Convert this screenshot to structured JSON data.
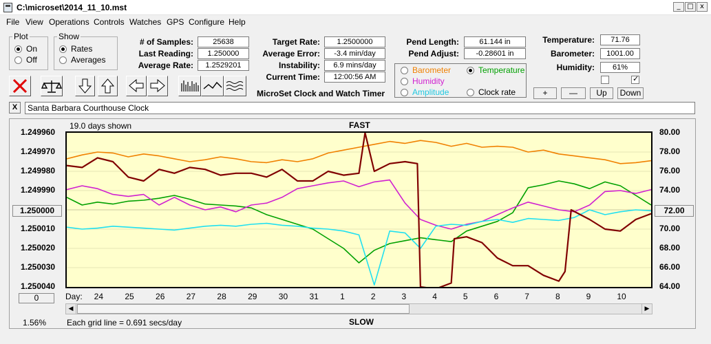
{
  "window": {
    "title": "C:\\microset\\2014_11_10.mst"
  },
  "menu": [
    "File",
    "View",
    "Operations",
    "Controls",
    "Watches",
    "GPS",
    "Configure",
    "Help"
  ],
  "plot_group": {
    "legend": "Plot",
    "on": "On",
    "off": "Off",
    "selected": "On"
  },
  "show_group": {
    "legend": "Show",
    "rates": "Rates",
    "averages": "Averages",
    "selected": "Rates"
  },
  "stats": {
    "num_samples_label": "# of Samples:",
    "num_samples": "25638",
    "last_reading_label": "Last Reading:",
    "last_reading": "1.250000",
    "average_rate_label": "Average Rate:",
    "average_rate": "1.2529201"
  },
  "rates": {
    "target_rate_label": "Target Rate:",
    "target_rate": "1.2500000",
    "average_error_label": "Average Error:",
    "average_error": "-3.4 min/day",
    "instability_label": "Instability:",
    "instability": "6.9 mins/day",
    "current_time_label": "Current Time:",
    "current_time": "12:00:56 AM"
  },
  "app_name": "MicroSet Clock and Watch Timer",
  "pend": {
    "length_label": "Pend Length:",
    "length": "61.144 in",
    "adjust_label": "Pend Adjust:",
    "adjust": "-0.28601 in"
  },
  "series_select": {
    "barometer": "Barometer",
    "temperature": "Temperature",
    "humidity": "Humidity",
    "amplitude": "Amplitude",
    "clock_rate": "Clock rate",
    "selected": "Temperature"
  },
  "environment": {
    "temperature_label": "Temperature:",
    "temperature": "71.76",
    "barometer_label": "Barometer:",
    "barometer": "1001.00",
    "humidity_label": "Humidity:",
    "humidity": "61%"
  },
  "scale_buttons": {
    "plus": "+",
    "minus": "—",
    "up": "Up",
    "down": "Down"
  },
  "watch_name": "Santa Barbara Courthouse Clock",
  "clear_label": "X",
  "colors": {
    "barometer": "#f08000",
    "temperature": "#00a000",
    "humidity": "#d020d0",
    "amplitude": "#20e0f0",
    "clock_rate": "#800000",
    "plot_bg": "#ffffcc"
  },
  "chart": {
    "days_shown": "19.0 days shown",
    "fast_label": "FAST",
    "slow_label": "SLOW",
    "grid_note": "Each grid line = 0.691 secs/day",
    "zoom": "1.56%",
    "center_value": "1.250000",
    "center_right": "72.00",
    "offset_value": "0",
    "day_label": "Day:"
  },
  "chart_data": {
    "type": "line",
    "title": "",
    "left_axis_ticks": [
      "1.249960",
      "1.249970",
      "1.249980",
      "1.249990",
      "1.250000",
      "1.250010",
      "1.250020",
      "1.250030",
      "1.250040"
    ],
    "right_axis_ticks": [
      "80.00",
      "78.00",
      "76.00",
      "74.00",
      "72.00",
      "70.00",
      "68.00",
      "66.00",
      "64.00"
    ],
    "ylim_left": [
      1.24996,
      1.25004
    ],
    "ylim_right": [
      64,
      80
    ],
    "x_ticks": [
      "24",
      "25",
      "26",
      "27",
      "28",
      "29",
      "30",
      "31",
      "1",
      "2",
      "3",
      "4",
      "5",
      "6",
      "7",
      "8",
      "9",
      "10"
    ],
    "grid": true,
    "series": [
      {
        "name": "Barometer",
        "x": [
          0,
          0.5,
          1,
          1.5,
          2,
          2.5,
          3,
          3.5,
          4,
          4.5,
          5,
          5.5,
          6,
          6.5,
          7,
          7.5,
          8,
          8.5,
          9,
          9.5,
          10,
          10.5,
          11,
          11.5,
          12,
          12.5,
          13,
          13.5,
          14,
          14.5,
          15,
          15.5,
          16,
          16.5,
          17,
          17.5,
          18,
          18.5,
          19
        ],
        "y": [
          77.3,
          77.7,
          78.0,
          77.9,
          77.5,
          77.8,
          77.6,
          77.3,
          77.0,
          77.2,
          77.5,
          77.3,
          77.0,
          76.9,
          77.2,
          77.0,
          77.3,
          77.9,
          78.2,
          78.5,
          78.8,
          79.1,
          78.9,
          79.2,
          79.0,
          78.6,
          78.9,
          78.5,
          78.6,
          78.5,
          78.0,
          78.2,
          77.8,
          77.6,
          77.4,
          77.2,
          76.8,
          76.9,
          77.1
        ]
      },
      {
        "name": "Temperature",
        "x": [
          0,
          0.5,
          1,
          1.5,
          2,
          2.5,
          3,
          3.5,
          4,
          4.5,
          5,
          5.5,
          6,
          6.5,
          7,
          7.5,
          8,
          8.5,
          9,
          9.5,
          10,
          10.5,
          11,
          11.5,
          12,
          12.5,
          13,
          13.5,
          14,
          14.5,
          15,
          15.5,
          16,
          16.5,
          17,
          17.5,
          18,
          18.5,
          19
        ],
        "y": [
          73.3,
          72.5,
          72.8,
          72.6,
          72.9,
          73.0,
          73.2,
          73.5,
          73.1,
          72.6,
          72.5,
          72.4,
          72.2,
          71.5,
          71.0,
          70.5,
          70.0,
          69.0,
          68.0,
          66.5,
          67.8,
          68.5,
          68.8,
          69.1,
          68.9,
          68.7,
          69.8,
          70.3,
          70.8,
          71.7,
          74.3,
          74.6,
          75.0,
          74.7,
          74.2,
          74.9,
          74.5,
          73.5,
          72.5
        ]
      },
      {
        "name": "Humidity",
        "x": [
          0,
          0.5,
          1,
          1.5,
          2,
          2.5,
          3,
          3.5,
          4,
          4.5,
          5,
          5.5,
          6,
          6.5,
          7,
          7.5,
          8,
          8.5,
          9,
          9.5,
          10,
          10.5,
          11,
          11.5,
          12,
          12.5,
          13,
          13.5,
          14,
          14.5,
          15,
          15.5,
          16,
          16.5,
          17,
          17.5,
          18,
          18.5,
          19
        ],
        "y": [
          74.1,
          74.5,
          74.2,
          73.6,
          73.4,
          73.6,
          72.5,
          73.3,
          72.5,
          72.0,
          72.3,
          71.8,
          72.5,
          72.7,
          73.3,
          74.2,
          74.5,
          74.8,
          75.0,
          74.4,
          74.9,
          75.1,
          72.7,
          71.0,
          70.4,
          70.0,
          70.5,
          70.8,
          71.5,
          72.2,
          72.8,
          72.4,
          72.0,
          71.8,
          72.5,
          73.9,
          74.0,
          73.7,
          74.1
        ]
      },
      {
        "name": "Amplitude",
        "x": [
          0,
          0.5,
          1,
          1.5,
          2,
          2.5,
          3,
          3.5,
          4,
          4.5,
          5,
          5.5,
          6,
          6.5,
          7,
          7.5,
          8,
          8.5,
          9,
          9.5,
          10,
          10.5,
          11,
          11.5,
          12,
          12.5,
          13,
          13.5,
          14,
          14.5,
          15,
          15.5,
          16,
          16.5,
          17,
          17.5,
          18,
          18.5,
          19
        ],
        "y": [
          70.2,
          70.0,
          70.1,
          70.3,
          70.2,
          70.1,
          70.0,
          69.9,
          70.1,
          70.3,
          70.4,
          70.3,
          70.5,
          70.6,
          70.4,
          70.3,
          70.1,
          70.0,
          69.8,
          69.4,
          64.2,
          69.8,
          69.6,
          68.0,
          70.3,
          70.5,
          70.4,
          70.8,
          71.0,
          70.7,
          71.1,
          71.0,
          70.9,
          71.2,
          72.0,
          71.5,
          71.8,
          72.0,
          71.9
        ]
      },
      {
        "name": "Clock rate",
        "x": [
          0,
          0.5,
          1,
          1.5,
          2,
          2.5,
          3,
          3.5,
          4,
          4.5,
          5,
          5.5,
          6,
          6.5,
          7,
          7.5,
          8,
          8.5,
          9,
          9.5,
          9.7,
          10.0,
          10.5,
          11,
          11.4,
          11.5,
          12,
          12.5,
          12.6,
          13,
          13.5,
          14,
          14.5,
          15,
          15.5,
          16,
          16.2,
          16.4,
          17,
          17.5,
          18,
          18.5,
          19
        ],
        "y": [
          1.249977,
          1.249978,
          1.249973,
          1.249975,
          1.249983,
          1.249985,
          1.249979,
          1.249981,
          1.249978,
          1.249979,
          1.249982,
          1.249981,
          1.249981,
          1.249983,
          1.249979,
          1.249985,
          1.249985,
          1.24998,
          1.249982,
          1.249981,
          1.24996,
          1.24998,
          1.249976,
          1.249975,
          1.249976,
          1.25004,
          1.250041,
          1.250038,
          1.250015,
          1.250014,
          1.250017,
          1.250025,
          1.250029,
          1.250029,
          1.250034,
          1.250037,
          1.250032,
          1.25,
          1.250005,
          1.25001,
          1.250011,
          1.250005,
          1.250002
        ]
      }
    ]
  },
  "watermark": ""
}
